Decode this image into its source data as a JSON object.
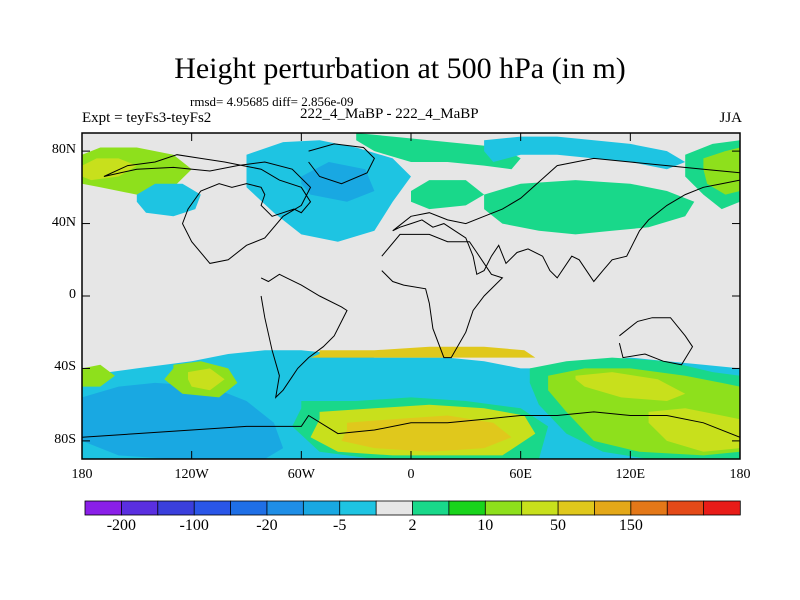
{
  "title": "Height perturbation at 500 hPa (in m)",
  "stats_line": "rmsd= 4.95685 diff= 2.856e-09",
  "experiment_label": "Expt = teyFs3-teyFs2",
  "center_label": "222_4_MaBP - 222_4_MaBP",
  "season_label": "JJA",
  "colors": {
    "land_outline": "#000000",
    "near_zero": "#e6e6e6"
  },
  "chart_data": {
    "type": "heatmap",
    "projection": "cylindrical-equidistant",
    "x_range": [
      -180,
      180
    ],
    "y_range": [
      -90,
      90
    ],
    "x_ticks": [
      {
        "value": -180,
        "label": "180"
      },
      {
        "value": -120,
        "label": "120W"
      },
      {
        "value": -60,
        "label": "60W"
      },
      {
        "value": 0,
        "label": "0"
      },
      {
        "value": 60,
        "label": "60E"
      },
      {
        "value": 120,
        "label": "120E"
      },
      {
        "value": 180,
        "label": "180"
      }
    ],
    "y_ticks": [
      {
        "value": 80,
        "label": "80N"
      },
      {
        "value": 40,
        "label": "40N"
      },
      {
        "value": 0,
        "label": "0"
      },
      {
        "value": -40,
        "label": "40S"
      },
      {
        "value": -80,
        "label": "80S"
      }
    ],
    "colorbar": {
      "colors": [
        "#8a1fe8",
        "#5a2fe0",
        "#3a3fdc",
        "#2a56e8",
        "#1f6fe6",
        "#1f8ee6",
        "#19a8e2",
        "#1ec4e2",
        "#e6e6e6",
        "#19d88a",
        "#19d41c",
        "#8ee01c",
        "#c8e01c",
        "#e0c81c",
        "#e4a818",
        "#e47818",
        "#e44a18",
        "#e81c18"
      ],
      "labels": [
        {
          "boundary": 1,
          "text": "-200"
        },
        {
          "boundary": 3,
          "text": "-100"
        },
        {
          "boundary": 5,
          "text": "-20"
        },
        {
          "boundary": 7,
          "text": "-5"
        },
        {
          "boundary": 9,
          "text": "2"
        },
        {
          "boundary": 11,
          "text": "10"
        },
        {
          "boundary": 13,
          "text": "50"
        },
        {
          "boundary": 15,
          "text": "150"
        }
      ]
    },
    "regions": [
      {
        "color_index": 11,
        "lons": [
          -180,
          -170,
          -150,
          -130,
          -120,
          -130,
          -150,
          -170,
          -180
        ],
        "lats": [
          78,
          82,
          82,
          78,
          70,
          60,
          56,
          60,
          62
        ]
      },
      {
        "color_index": 12,
        "lons": [
          -180,
          -172,
          -160,
          -150,
          -160,
          -175,
          -180
        ],
        "lats": [
          72,
          76,
          76,
          72,
          66,
          64,
          66
        ]
      },
      {
        "color_index": 7,
        "lons": [
          -150,
          -140,
          -125,
          -115,
          -118,
          -130,
          -145,
          -150
        ],
        "lats": [
          56,
          62,
          62,
          56,
          48,
          44,
          46,
          52
        ]
      },
      {
        "color_index": 7,
        "lons": [
          -90,
          -70,
          -50,
          -30,
          -10,
          0,
          -10,
          -20,
          -40,
          -60,
          -75,
          -90
        ],
        "lats": [
          78,
          85,
          86,
          82,
          76,
          66,
          52,
          36,
          30,
          34,
          46,
          60
        ]
      },
      {
        "color_index": 6,
        "lons": [
          -60,
          -45,
          -25,
          -20,
          -35,
          -55,
          -60
        ],
        "lats": [
          66,
          74,
          70,
          58,
          52,
          56,
          62
        ]
      },
      {
        "color_index": 9,
        "lons": [
          -30,
          -10,
          10,
          30,
          50,
          60,
          55,
          40,
          20,
          0,
          -20,
          -30
        ],
        "lats": [
          90,
          88,
          86,
          84,
          82,
          76,
          70,
          72,
          74,
          74,
          80,
          86
        ]
      },
      {
        "color_index": 9,
        "lons": [
          0,
          10,
          30,
          40,
          30,
          10,
          0
        ],
        "lats": [
          58,
          64,
          64,
          56,
          50,
          48,
          52
        ]
      },
      {
        "color_index": 7,
        "lons": [
          40,
          60,
          80,
          100,
          120,
          140,
          150,
          140,
          120,
          100,
          80,
          60,
          45,
          40
        ],
        "lats": [
          86,
          88,
          88,
          86,
          84,
          80,
          74,
          70,
          74,
          76,
          78,
          78,
          74,
          80
        ]
      },
      {
        "color_index": 9,
        "lons": [
          40,
          60,
          90,
          120,
          140,
          155,
          150,
          130,
          110,
          90,
          70,
          50,
          40
        ],
        "lats": [
          56,
          62,
          64,
          62,
          58,
          52,
          44,
          38,
          36,
          34,
          36,
          40,
          48
        ]
      },
      {
        "color_index": 9,
        "lons": [
          150,
          165,
          180,
          180,
          170,
          160,
          150
        ],
        "lats": [
          78,
          84,
          86,
          52,
          48,
          56,
          66
        ]
      },
      {
        "color_index": 11,
        "lons": [
          160,
          172,
          180,
          180,
          172,
          162,
          160
        ],
        "lats": [
          76,
          80,
          82,
          58,
          56,
          62,
          70
        ]
      },
      {
        "color_index": 7,
        "lons": [
          -180,
          -150,
          -120,
          -100,
          -80,
          -60,
          -40,
          -20,
          0,
          20,
          40,
          60,
          80,
          100,
          120,
          140,
          160,
          180,
          180,
          -180
        ],
        "lats": [
          -44,
          -40,
          -36,
          -32,
          -30,
          -30,
          -32,
          -34,
          -34,
          -34,
          -36,
          -40,
          -40,
          -36,
          -34,
          -36,
          -38,
          -40,
          -90,
          -90
        ]
      },
      {
        "color_index": 6,
        "lons": [
          -180,
          -160,
          -140,
          -110,
          -90,
          -75,
          -70,
          -80,
          -100,
          -130,
          -160,
          -180
        ],
        "lats": [
          -56,
          -50,
          -48,
          -50,
          -58,
          -70,
          -84,
          -90,
          -90,
          -90,
          -88,
          -80
        ]
      },
      {
        "color_index": 11,
        "lons": [
          -130,
          -115,
          -100,
          -95,
          -105,
          -125,
          -135,
          -130
        ],
        "lats": [
          -38,
          -36,
          -40,
          -48,
          -56,
          -54,
          -46,
          -40
        ]
      },
      {
        "color_index": 12,
        "lons": [
          -122,
          -110,
          -102,
          -110,
          -120,
          -122
        ],
        "lats": [
          -42,
          -40,
          -46,
          -52,
          -50,
          -46
        ]
      },
      {
        "color_index": 11,
        "lons": [
          -180,
          -170,
          -162,
          -170,
          -180
        ],
        "lats": [
          -40,
          -38,
          -44,
          -50,
          -50
        ]
      },
      {
        "color_index": 9,
        "lons": [
          -60,
          -30,
          0,
          30,
          60,
          75,
          70,
          40,
          10,
          -20,
          -50,
          -65,
          -60
        ],
        "lats": [
          -58,
          -58,
          -56,
          -58,
          -62,
          -72,
          -90,
          -90,
          -90,
          -90,
          -86,
          -72,
          -62
        ]
      },
      {
        "color_index": 12,
        "lons": [
          -50,
          -20,
          10,
          40,
          62,
          68,
          50,
          20,
          -10,
          -40,
          -55,
          -50
        ],
        "lats": [
          -64,
          -62,
          -60,
          -62,
          -66,
          -76,
          -88,
          -88,
          -88,
          -86,
          -78,
          -68
        ]
      },
      {
        "color_index": 13,
        "lons": [
          -35,
          -10,
          20,
          45,
          55,
          40,
          10,
          -20,
          -38,
          -35
        ],
        "lats": [
          -70,
          -68,
          -66,
          -70,
          -78,
          -84,
          -86,
          -84,
          -80,
          -74
        ]
      },
      {
        "color_index": 9,
        "lons": [
          65,
          85,
          110,
          140,
          165,
          180,
          180,
          160,
          130,
          105,
          85,
          70,
          65
        ],
        "lats": [
          -40,
          -36,
          -34,
          -36,
          -42,
          -44,
          -90,
          -90,
          -90,
          -86,
          -76,
          -60,
          -48
        ]
      },
      {
        "color_index": 11,
        "lons": [
          75,
          95,
          120,
          150,
          170,
          180,
          180,
          160,
          125,
          100,
          85,
          75
        ],
        "lats": [
          -44,
          -40,
          -40,
          -44,
          -48,
          -50,
          -86,
          -88,
          -86,
          -80,
          -64,
          -52
        ]
      },
      {
        "color_index": 12,
        "lons": [
          90,
          110,
          135,
          150,
          140,
          115,
          95,
          90
        ],
        "lats": [
          -44,
          -42,
          -46,
          -54,
          -58,
          -56,
          -50,
          -46
        ]
      },
      {
        "color_index": 12,
        "lons": [
          130,
          150,
          170,
          180,
          180,
          160,
          140,
          130
        ],
        "lats": [
          -64,
          -62,
          -66,
          -68,
          -84,
          -86,
          -80,
          -70
        ]
      },
      {
        "color_index": 13,
        "lons": [
          -50,
          -20,
          10,
          40,
          62,
          68,
          -55,
          -50
        ],
        "lats": [
          -30,
          -30,
          -28,
          -28,
          -30,
          -34,
          -34,
          -32
        ]
      }
    ],
    "land_outlines": [
      {
        "lons": [
          -168,
          -150,
          -130,
          -110,
          -95,
          -80,
          -65,
          -55,
          -60,
          -70,
          -80,
          -90,
          -100,
          -110,
          -120,
          -125,
          -122,
          -115,
          -105,
          -98,
          -90,
          -82,
          -80,
          -82,
          -76,
          -70,
          -64,
          -60,
          -55,
          -60,
          -72,
          -82,
          -92,
          -102,
          -115,
          -128,
          -140,
          -155,
          -168
        ],
        "lats": [
          66,
          70,
          71,
          69,
          72,
          74,
          70,
          60,
          50,
          44,
          32,
          28,
          20,
          18,
          30,
          40,
          48,
          58,
          62,
          60,
          62,
          60,
          56,
          50,
          44,
          46,
          48,
          46,
          52,
          60,
          64,
          70,
          72,
          74,
          76,
          78,
          74,
          72,
          66
        ]
      },
      {
        "lons": [
          -82,
          -78,
          -72,
          -68,
          -60,
          -50,
          -38,
          -35,
          -42,
          -48,
          -56,
          -62,
          -66,
          -70,
          -74,
          -72,
          -76,
          -80,
          -82
        ],
        "lats": [
          10,
          8,
          12,
          10,
          6,
          0,
          -6,
          -8,
          -22,
          -28,
          -34,
          -40,
          -46,
          -52,
          -56,
          -44,
          -30,
          -12,
          0
        ]
      },
      {
        "lons": [
          -56,
          -42,
          -26,
          -20,
          -24,
          -38,
          -50,
          -56
        ],
        "lats": [
          80,
          84,
          82,
          76,
          68,
          62,
          66,
          74
        ]
      },
      {
        "lons": [
          -10,
          0,
          10,
          20,
          30,
          40,
          50,
          60,
          80,
          100,
          120,
          140,
          160,
          180,
          180,
          170,
          160,
          150,
          140,
          130,
          125,
          122,
          118,
          110,
          105,
          100,
          92,
          88,
          80,
          76,
          72,
          64,
          58,
          52,
          48,
          44,
          40,
          36,
          34,
          30,
          24,
          18,
          12,
          6,
          0,
          -6,
          -10
        ],
        "lats": [
          36,
          44,
          46,
          42,
          40,
          44,
          48,
          54,
          72,
          76,
          74,
          72,
          70,
          68,
          64,
          62,
          60,
          56,
          50,
          42,
          36,
          30,
          22,
          20,
          14,
          8,
          20,
          22,
          10,
          14,
          22,
          26,
          24,
          18,
          28,
          22,
          14,
          12,
          22,
          32,
          36,
          40,
          38,
          42,
          40,
          38,
          36
        ]
      },
      {
        "lons": [
          -16,
          -6,
          10,
          20,
          32,
          36,
          44,
          50,
          40,
          34,
          30,
          22,
          18,
          12,
          10,
          8,
          -4,
          -10,
          -16
        ],
        "lats": [
          22,
          34,
          34,
          30,
          30,
          24,
          12,
          10,
          0,
          -8,
          -20,
          -34,
          -34,
          -18,
          -4,
          4,
          6,
          8,
          14
        ]
      },
      {
        "lons": [
          114,
          124,
          132,
          142,
          150,
          154,
          148,
          138,
          128,
          116,
          114
        ],
        "lats": [
          -22,
          -14,
          -12,
          -12,
          -22,
          -28,
          -38,
          -36,
          -32,
          -34,
          -26
        ]
      },
      {
        "lons": [
          -180,
          -150,
          -120,
          -90,
          -60,
          -56,
          -40,
          -20,
          0,
          20,
          40,
          60,
          80,
          100,
          120,
          140,
          160,
          180
        ],
        "lats": [
          -78,
          -76,
          -74,
          -72,
          -72,
          -66,
          -76,
          -74,
          -70,
          -70,
          -68,
          -66,
          -66,
          -64,
          -66,
          -66,
          -70,
          -78
        ]
      }
    ]
  }
}
